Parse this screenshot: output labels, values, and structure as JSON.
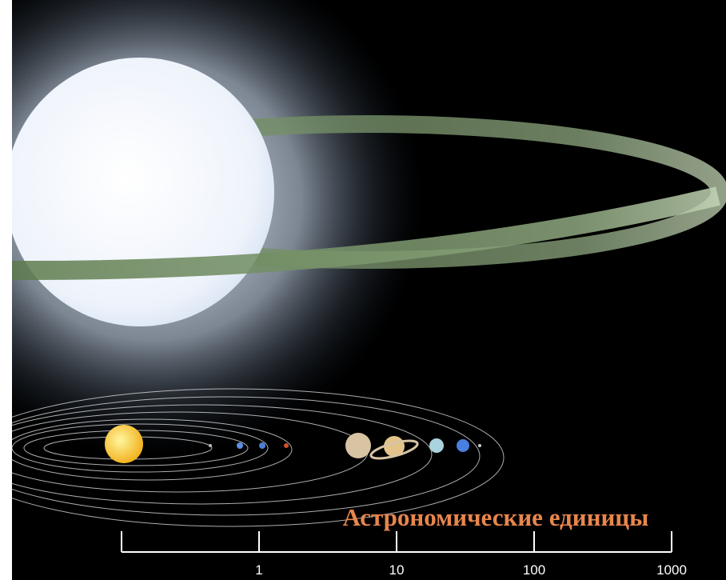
{
  "scale": {
    "title": "Астрономические единицы",
    "log": true,
    "xlim": [
      0.1,
      1000
    ],
    "xticks": [
      1,
      10,
      100,
      1000
    ],
    "color": "#ffffff",
    "title_color": "#e8864c"
  }
}
